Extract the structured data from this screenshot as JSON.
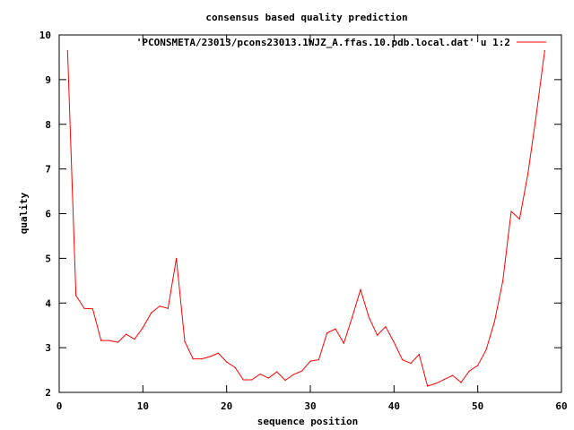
{
  "chart_data": {
    "type": "line",
    "title": "consensus based quality prediction",
    "xlabel": "sequence position",
    "ylabel": "quality",
    "xlim": [
      0,
      60
    ],
    "ylim": [
      2,
      10
    ],
    "xticks": [
      0,
      10,
      20,
      30,
      40,
      50,
      60
    ],
    "yticks": [
      2,
      3,
      4,
      5,
      6,
      7,
      8,
      9,
      10
    ],
    "grid": false,
    "legend_position": "top-right",
    "series": [
      {
        "name": "'PCONSMETA/23013/pcons23013.1WJZ_A.ffas.10.pdb.local.dat' u 1:2",
        "color": "#ff0000",
        "x": [
          1,
          2,
          3,
          4,
          5,
          6,
          7,
          8,
          9,
          10,
          11,
          12,
          13,
          14,
          15,
          16,
          17,
          18,
          19,
          20,
          21,
          22,
          23,
          24,
          25,
          26,
          27,
          28,
          29,
          30,
          31,
          32,
          33,
          34,
          35,
          36,
          37,
          38,
          39,
          40,
          41,
          42,
          43,
          44,
          45,
          46,
          47,
          48,
          49,
          50,
          51,
          52,
          53,
          54,
          55,
          56,
          57,
          58
        ],
        "y": [
          9.65,
          4.17,
          3.88,
          3.87,
          3.16,
          3.16,
          3.12,
          3.3,
          3.19,
          3.45,
          3.78,
          3.93,
          3.88,
          5.0,
          3.14,
          2.75,
          2.75,
          2.8,
          2.88,
          2.68,
          2.56,
          2.28,
          2.28,
          2.41,
          2.32,
          2.46,
          2.27,
          2.4,
          2.48,
          2.7,
          2.73,
          3.33,
          3.42,
          3.1,
          3.68,
          4.3,
          3.68,
          3.28,
          3.47,
          3.12,
          2.73,
          2.65,
          2.85,
          2.14,
          2.2,
          2.29,
          2.38,
          2.22,
          2.48,
          2.6,
          2.95,
          3.58,
          4.5,
          6.05,
          5.88,
          6.9,
          8.22,
          9.65
        ]
      }
    ]
  }
}
